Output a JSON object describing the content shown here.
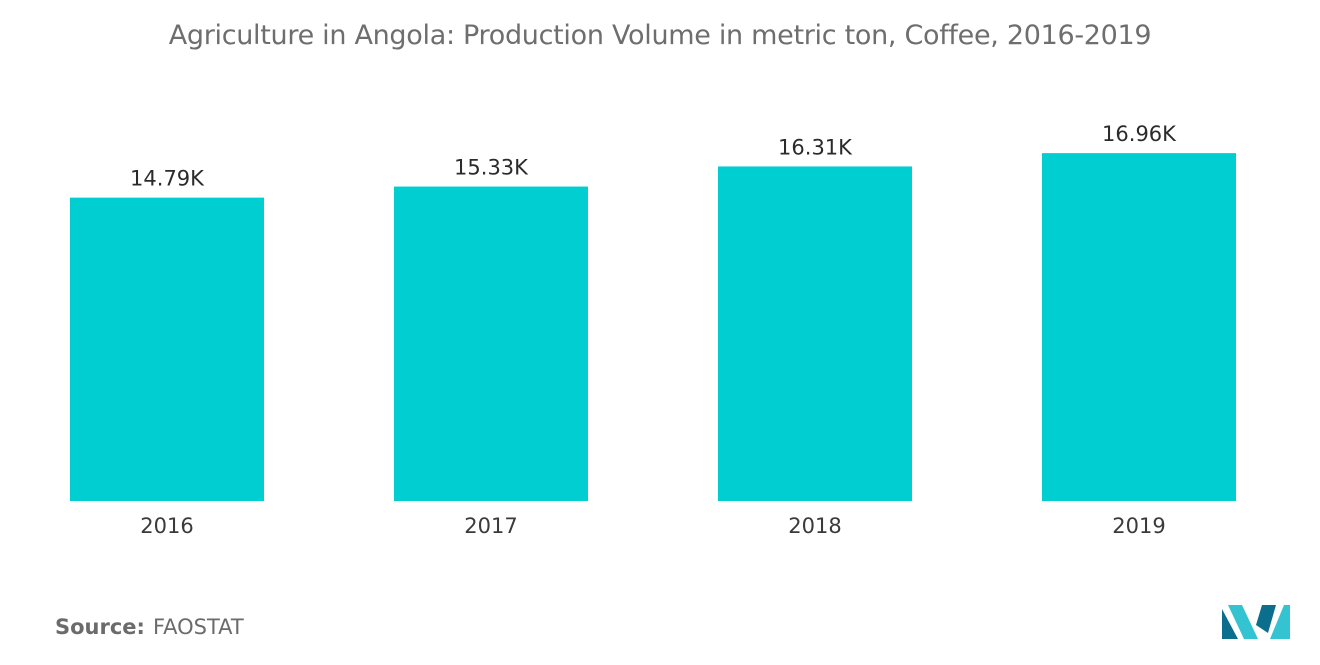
{
  "chart_data": {
    "type": "bar",
    "title": "Agriculture in Angola: Production Volume in metric ton, Coffee, 2016-2019",
    "categories": [
      "2016",
      "2017",
      "2018",
      "2019"
    ],
    "values": [
      14.79,
      15.33,
      16.31,
      16.96
    ],
    "value_labels": [
      "14.79K",
      "15.33K",
      "16.31K",
      "16.96K"
    ],
    "unit": "K",
    "xlabel": "",
    "ylabel": "",
    "ylim": [
      0,
      21.5
    ],
    "grid": false,
    "legend": "none",
    "bar_color": "#00CED1"
  },
  "footer": {
    "source_label": "Source:",
    "source_value": "FAOSTAT"
  },
  "logo": {
    "icon": "mordor-intelligence-logo-icon",
    "colors": [
      "#0a6e8c",
      "#34c3d1"
    ]
  }
}
